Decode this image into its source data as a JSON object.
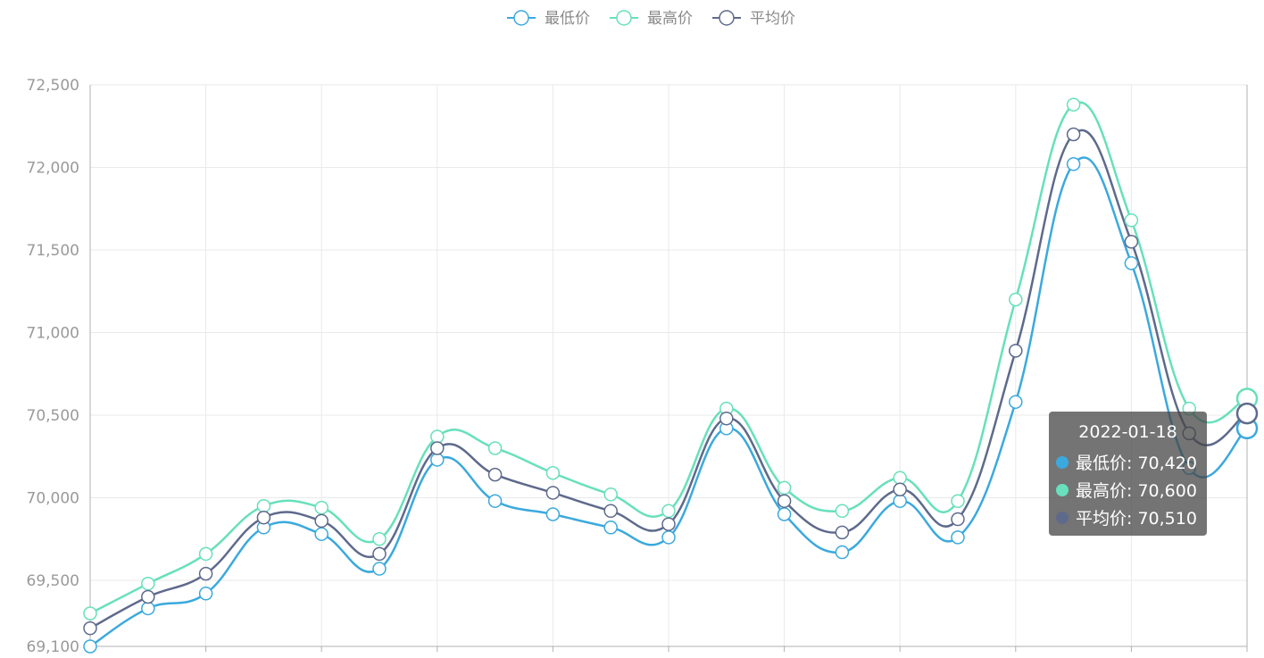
{
  "chart_data": {
    "type": "line",
    "smooth": true,
    "title": "",
    "xlabel": "",
    "ylabel": "",
    "ylim": [
      69100,
      72500
    ],
    "yticks": [
      "72,500",
      "72,000",
      "71,500",
      "71,000",
      "70,500",
      "70,000",
      "69,500",
      "69,100"
    ],
    "ytick_values": [
      72500,
      72000,
      71500,
      71000,
      70500,
      70000,
      69500,
      69100
    ],
    "grid": true,
    "legend_position": "top-center",
    "x": [
      "",
      "",
      "",
      "",
      "",
      "",
      "",
      "",
      "",
      "",
      "",
      "",
      "",
      "",
      "",
      "",
      "",
      "",
      "",
      "",
      "2022-01-18"
    ],
    "series": [
      {
        "name": "最低价",
        "color": "#3ba9dd",
        "values": [
          69100,
          69330,
          69420,
          69820,
          69780,
          69570,
          70230,
          69980,
          69900,
          69820,
          69760,
          70420,
          69900,
          69670,
          69980,
          69760,
          70580,
          72020,
          71420,
          70180,
          70420
        ]
      },
      {
        "name": "最高价",
        "color": "#67e0bb",
        "values": [
          69300,
          69480,
          69660,
          69950,
          69940,
          69750,
          70370,
          70300,
          70150,
          70020,
          69920,
          70540,
          70060,
          69920,
          70120,
          69980,
          71200,
          72380,
          71680,
          70540,
          70600
        ]
      },
      {
        "name": "平均价",
        "color": "#5e6a8c",
        "values": [
          69210,
          69400,
          69540,
          69880,
          69860,
          69660,
          70300,
          70140,
          70030,
          69920,
          69840,
          70480,
          69980,
          69790,
          70050,
          69870,
          70890,
          72200,
          71550,
          70390,
          70510
        ]
      }
    ],
    "highlight_index": 20
  },
  "tooltip": {
    "date": "2022-01-18",
    "rows": [
      {
        "label": "最低价: 70,420",
        "color": "#3ba9dd"
      },
      {
        "label": "最高价: 70,600",
        "color": "#67e0bb"
      },
      {
        "label": "平均价: 70,510",
        "color": "#5e6a8c"
      }
    ]
  }
}
